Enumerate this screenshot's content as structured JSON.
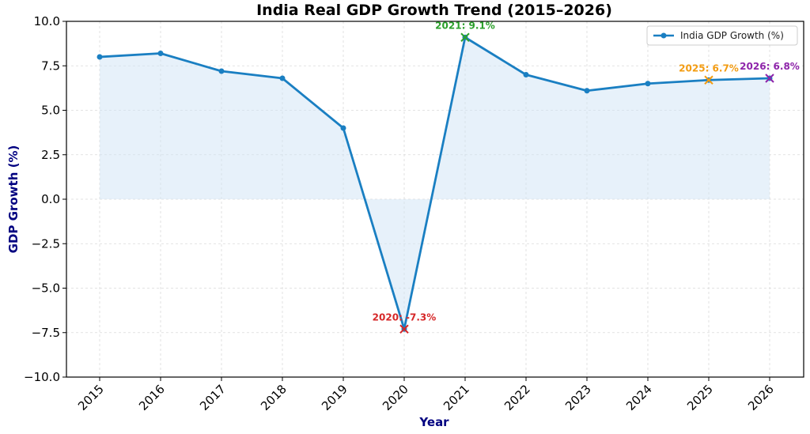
{
  "chart_data": {
    "type": "line",
    "title": "India Real GDP Growth Trend (2015–2026)",
    "xlabel": "Year",
    "ylabel": "GDP Growth (%)",
    "categories": [
      "2015",
      "2016",
      "2017",
      "2018",
      "2019",
      "2020",
      "2021",
      "2022",
      "2023",
      "2024",
      "2025",
      "2026"
    ],
    "series": [
      {
        "name": "India GDP Growth (%)",
        "values": [
          8.0,
          8.2,
          7.2,
          6.8,
          4.0,
          -7.3,
          9.1,
          7.0,
          6.1,
          6.5,
          6.7,
          6.8
        ]
      }
    ],
    "ylim": [
      -10.0,
      10.0
    ],
    "yticks": [
      "−10.0",
      "−7.5",
      "−5.0",
      "−2.5",
      "0.0",
      "2.5",
      "5.0",
      "7.5",
      "10.0"
    ],
    "ytick_values": [
      -10,
      -7.5,
      -5,
      -2.5,
      0,
      2.5,
      5,
      7.5,
      10
    ],
    "grid": true,
    "legend_position": "top-right",
    "colors": {
      "line": "#1a7fc2",
      "fill": "#cfe3f5"
    },
    "annotations": [
      {
        "text": "2020: -7.3%",
        "index": 5,
        "value": -7.3,
        "color": "#d62728"
      },
      {
        "text": "2021: 9.1%",
        "index": 6,
        "value": 9.1,
        "color": "#2ca02c"
      },
      {
        "text": "2025: 6.7%",
        "index": 10,
        "value": 6.7,
        "color": "#f39c12"
      },
      {
        "text": "2026: 6.8%",
        "index": 11,
        "value": 6.8,
        "color": "#8e24aa"
      }
    ]
  }
}
